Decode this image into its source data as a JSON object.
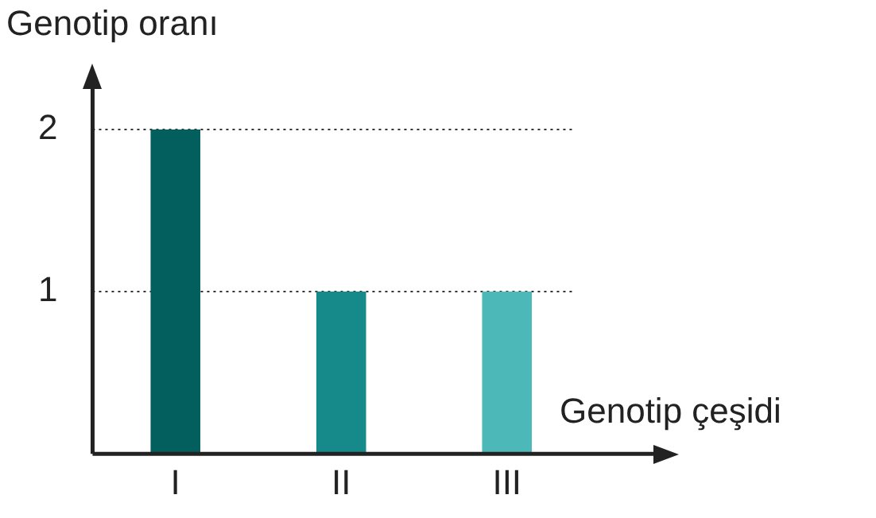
{
  "chart_data": {
    "type": "bar",
    "xlabel": "Genotip çeşidi",
    "ylabel": "Genotip oranı",
    "categories": [
      "I",
      "II",
      "III"
    ],
    "values": [
      2,
      1,
      1
    ],
    "colors": [
      "#035e5e",
      "#16898a",
      "#4db8b8"
    ],
    "ylim": [
      0,
      2.25
    ],
    "yticks": [
      1,
      2
    ],
    "grid": "y"
  }
}
